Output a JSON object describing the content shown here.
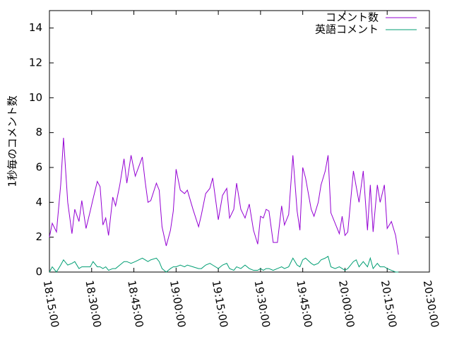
{
  "chart_data": {
    "type": "line",
    "ylabel": "1秒毎のコメント数",
    "x": [
      "18:15:00",
      "18:16:00",
      "18:17:30",
      "18:19:00",
      "18:20:00",
      "18:21:30",
      "18:23:00",
      "18:24:00",
      "18:25:30",
      "18:26:30",
      "18:28:00",
      "18:29:30",
      "18:30:30",
      "18:32:00",
      "18:33:00",
      "18:34:00",
      "18:35:00",
      "18:36:00",
      "18:37:30",
      "18:38:30",
      "18:40:00",
      "18:41:30",
      "18:42:30",
      "18:44:00",
      "18:45:30",
      "18:48:00",
      "18:49:00",
      "18:50:00",
      "18:51:00",
      "18:53:00",
      "18:54:00",
      "18:55:00",
      "18:56:30",
      "18:58:00",
      "18:59:00",
      "19:00:00",
      "19:01:30",
      "19:03:00",
      "19:04:00",
      "19:06:00",
      "19:08:00",
      "19:09:00",
      "19:10:30",
      "19:12:00",
      "19:13:00",
      "19:15:00",
      "19:16:30",
      "19:18:00",
      "19:19:00",
      "19:20:30",
      "19:21:30",
      "19:23:00",
      "19:24:30",
      "19:26:00",
      "19:27:30",
      "19:29:00",
      "19:30:00",
      "19:31:00",
      "19:32:00",
      "19:33:00",
      "19:34:30",
      "19:36:00",
      "19:37:30",
      "19:38:30",
      "19:40:00",
      "19:41:30",
      "19:43:00",
      "19:44:00",
      "19:45:00",
      "19:46:00",
      "19:48:00",
      "19:49:00",
      "19:50:30",
      "19:51:30",
      "19:53:00",
      "19:54:00",
      "19:55:00",
      "19:56:30",
      "19:58:00",
      "19:59:00",
      "20:00:00",
      "20:01:00",
      "20:03:00",
      "20:04:00",
      "20:05:00",
      "20:06:30",
      "20:08:00",
      "20:09:00",
      "20:10:00",
      "20:11:30",
      "20:12:30",
      "20:14:00",
      "20:15:00",
      "20:16:30",
      "20:18:00",
      "20:19:00"
    ],
    "series": [
      {
        "name": "コメント数",
        "color": "#9400d3",
        "values": [
          2.0,
          2.8,
          2.3,
          5.0,
          7.7,
          4.0,
          2.2,
          3.6,
          2.9,
          4.1,
          2.5,
          3.5,
          4.2,
          5.2,
          4.9,
          2.7,
          3.1,
          2.1,
          4.3,
          3.8,
          5.0,
          6.5,
          5.1,
          6.7,
          5.5,
          6.6,
          5.2,
          4.0,
          4.1,
          5.1,
          4.7,
          2.6,
          1.5,
          2.4,
          3.5,
          5.9,
          4.7,
          4.5,
          4.7,
          3.6,
          2.6,
          3.3,
          4.5,
          4.8,
          5.4,
          3.0,
          4.4,
          4.8,
          3.1,
          3.6,
          5.1,
          3.6,
          3.1,
          3.9,
          2.4,
          1.6,
          3.2,
          3.1,
          3.6,
          3.5,
          1.7,
          1.7,
          3.8,
          2.7,
          3.3,
          6.7,
          3.5,
          2.4,
          6.0,
          5.4,
          3.6,
          3.2,
          4.0,
          5.0,
          5.8,
          6.7,
          3.4,
          2.8,
          2.2,
          3.2,
          2.1,
          2.3,
          5.8,
          4.9,
          4.0,
          5.8,
          2.4,
          5.0,
          2.3,
          5.0,
          4.0,
          5.0,
          2.5,
          2.9,
          2.1,
          1.0
        ]
      },
      {
        "name": "英語コメント",
        "color": "#009e73",
        "values": [
          0.0,
          0.3,
          0.0,
          0.4,
          0.7,
          0.4,
          0.5,
          0.6,
          0.2,
          0.3,
          0.3,
          0.3,
          0.6,
          0.3,
          0.3,
          0.2,
          0.3,
          0.1,
          0.2,
          0.2,
          0.4,
          0.6,
          0.6,
          0.5,
          0.6,
          0.8,
          0.7,
          0.6,
          0.7,
          0.8,
          0.6,
          0.2,
          0.0,
          0.2,
          0.3,
          0.3,
          0.4,
          0.3,
          0.4,
          0.3,
          0.2,
          0.2,
          0.4,
          0.5,
          0.4,
          0.2,
          0.4,
          0.5,
          0.2,
          0.1,
          0.3,
          0.2,
          0.4,
          0.2,
          0.1,
          0.1,
          0.2,
          0.1,
          0.2,
          0.2,
          0.1,
          0.2,
          0.3,
          0.2,
          0.3,
          0.8,
          0.4,
          0.3,
          0.7,
          0.8,
          0.5,
          0.4,
          0.5,
          0.7,
          0.8,
          0.9,
          0.3,
          0.2,
          0.3,
          0.2,
          0.1,
          0.2,
          0.6,
          0.7,
          0.3,
          0.6,
          0.3,
          0.8,
          0.2,
          0.5,
          0.3,
          0.3,
          0.2,
          0.1,
          0.0,
          0.0
        ]
      }
    ],
    "xlim": [
      "18:15:00",
      "20:30:00"
    ],
    "xticks": [
      "18:15:00",
      "18:30:00",
      "18:45:00",
      "19:00:00",
      "19:15:00",
      "19:30:00",
      "19:45:00",
      "20:00:00",
      "20:15:00",
      "20:30:00"
    ],
    "ylim": [
      0,
      15
    ],
    "yticks": [
      0,
      2,
      4,
      6,
      8,
      10,
      12,
      14
    ],
    "legend": "top-right"
  }
}
